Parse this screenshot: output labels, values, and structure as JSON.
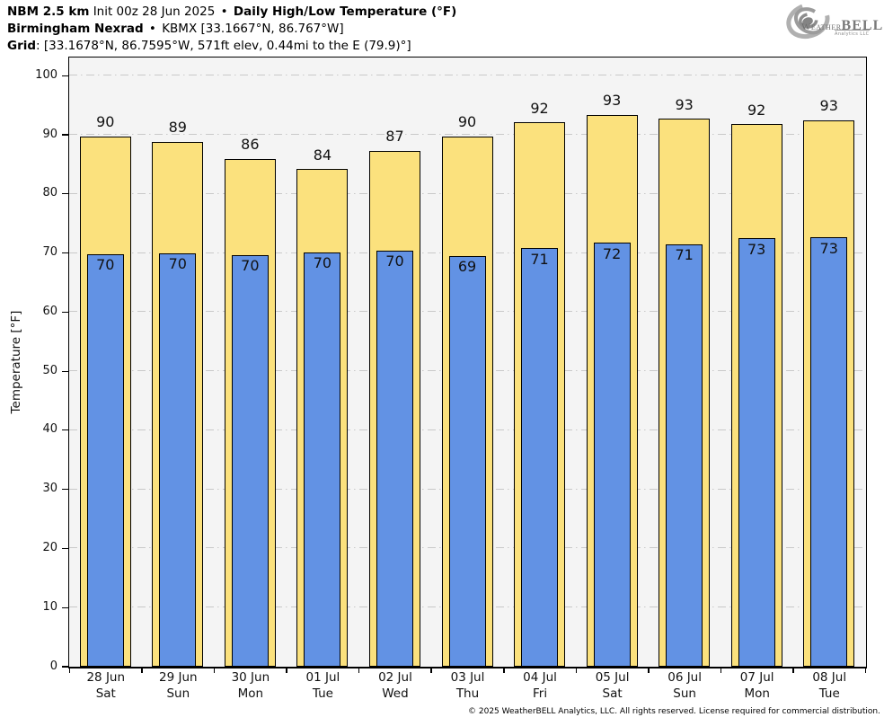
{
  "header": {
    "line1": {
      "model": "NBM 2.5 km",
      "init": "Init 00z 28 Jun 2025",
      "separator": "•",
      "product": "Daily High/Low Temperature (°F)"
    },
    "line2": {
      "station": "Birmingham Nexrad",
      "separator": "•",
      "details": "KBMX [33.1667°N, 86.767°W]"
    },
    "line3": {
      "label": "Grid",
      "details": ": [33.1678°N, 86.7595°W, 571ft elev, 0.44mi to the E (79.9)°]"
    }
  },
  "logo": {
    "brand_left": "Weather",
    "brand_right": "BELL",
    "subtitle": "Analytics LLC"
  },
  "chart_data": {
    "type": "bar",
    "title": "Daily High/Low Temperature (°F)",
    "ylabel": "Temperature [°F]",
    "ylim": [
      0,
      103
    ],
    "yticks": [
      0,
      10,
      20,
      30,
      40,
      50,
      60,
      70,
      80,
      90,
      100
    ],
    "grid": "horizontal dash-dot gridlines every 10°F",
    "legend_position": "none",
    "categories": [
      {
        "date": "28 Jun",
        "day": "Sat"
      },
      {
        "date": "29 Jun",
        "day": "Sun"
      },
      {
        "date": "30 Jun",
        "day": "Mon"
      },
      {
        "date": "01 Jul",
        "day": "Tue"
      },
      {
        "date": "02 Jul",
        "day": "Wed"
      },
      {
        "date": "03 Jul",
        "day": "Thu"
      },
      {
        "date": "04 Jul",
        "day": "Fri"
      },
      {
        "date": "05 Jul",
        "day": "Sat"
      },
      {
        "date": "06 Jul",
        "day": "Sun"
      },
      {
        "date": "07 Jul",
        "day": "Mon"
      },
      {
        "date": "08 Jul",
        "day": "Tue"
      }
    ],
    "series": [
      {
        "name": "Daily High",
        "color": "#fbe17d",
        "values": [
          90,
          89,
          86,
          84,
          87,
          90,
          92,
          93,
          93,
          92,
          93
        ],
        "values_exact": [
          89.7,
          88.8,
          85.9,
          84.2,
          87.3,
          89.7,
          92.1,
          93.4,
          92.7,
          91.8,
          92.5
        ]
      },
      {
        "name": "Daily Low",
        "color": "#6292e4",
        "values": [
          70,
          70,
          70,
          70,
          70,
          69,
          71,
          72,
          71,
          73,
          73
        ],
        "values_exact": [
          69.8,
          70.0,
          69.7,
          70.1,
          70.4,
          69.5,
          70.8,
          71.7,
          71.5,
          72.5,
          72.6
        ]
      }
    ]
  },
  "footer": {
    "copyright": "© 2025 WeatherBELL Analytics, LLC. All rights reserved. License required for commercial distribution."
  },
  "colors": {
    "high_fill": "#fbe17d",
    "low_fill": "#6292e4",
    "bar_border": "#000000",
    "plot_bg": "#f4f4f4",
    "gridline": "#c9c9c9",
    "page_bg": "#ffffff",
    "logo_gray": "#9a9a9a"
  }
}
